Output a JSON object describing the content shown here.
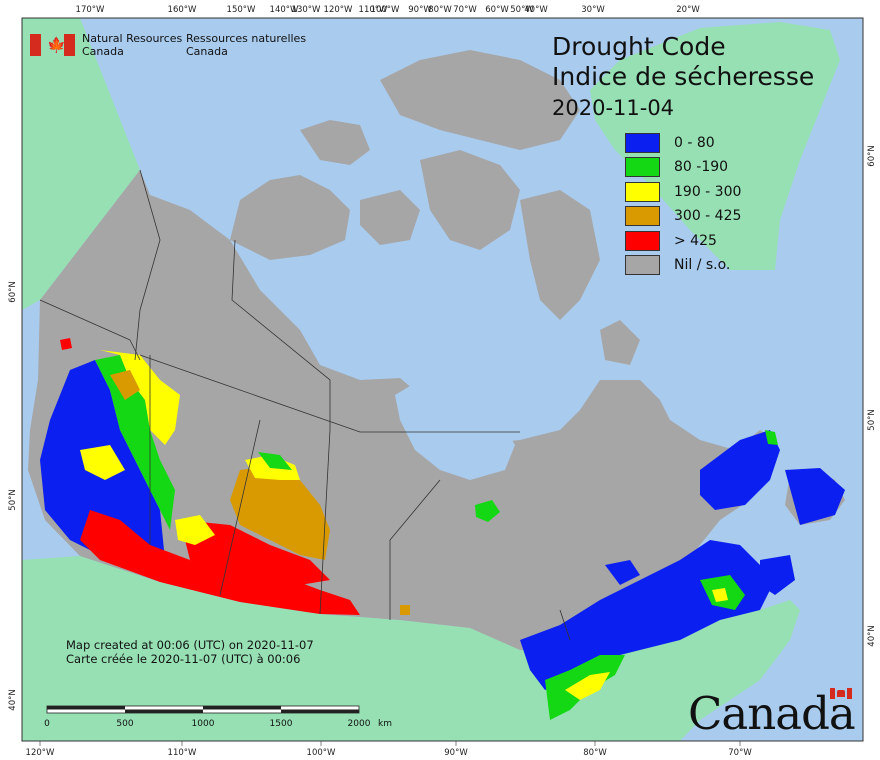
{
  "header": {
    "org_en": [
      "Natural Resources",
      "Canada"
    ],
    "org_fr": [
      "Ressources naturelles",
      "Canada"
    ],
    "title_en": "Drought Code",
    "title_fr": "Indice de sécheresse",
    "date": "2020-11-04"
  },
  "legend": [
    {
      "label": "0 - 80",
      "color": "#0a1ff0"
    },
    {
      "label": "80 -190",
      "color": "#15d815"
    },
    {
      "label": "190 - 300",
      "color": "#ffff00"
    },
    {
      "label": "300 - 425",
      "color": "#d89a00"
    },
    {
      "label": "> 425",
      "color": "#ff0000"
    },
    {
      "label": "Nil / s.o.",
      "color": "#a6a6a6"
    }
  ],
  "graticule": {
    "top_labels": [
      "170°W",
      "160°W",
      "150°W",
      "140°W",
      "130°W",
      "120°W",
      "110°W",
      "100°W",
      "90°W",
      "80°W",
      "70°W",
      "60°W",
      "50°W",
      "40°W",
      "30°W",
      "20°W"
    ],
    "bottom_labels": [
      "120°W",
      "110°W",
      "100°W",
      "90°W",
      "80°W",
      "70°W"
    ],
    "left_labels": [
      "60°N",
      "50°N",
      "40°N"
    ],
    "right_labels": [
      "60°N",
      "50°N",
      "40°N"
    ]
  },
  "scale_bar": {
    "ticks": [
      "0",
      "500",
      "1000",
      "1500",
      "2000"
    ],
    "unit": "km"
  },
  "footer": {
    "created_en": "Map created at 00:06 (UTC) on 2020-11-07",
    "created_fr": "Carte créée le 2020-11-07 (UTC) à 00:06"
  },
  "wordmark": "Canada",
  "colors": {
    "ocean": "#a9cbee",
    "land": "#96e0b4",
    "canada": "#a6a6a6",
    "frame": "#333333",
    "boundary": "#333333"
  }
}
